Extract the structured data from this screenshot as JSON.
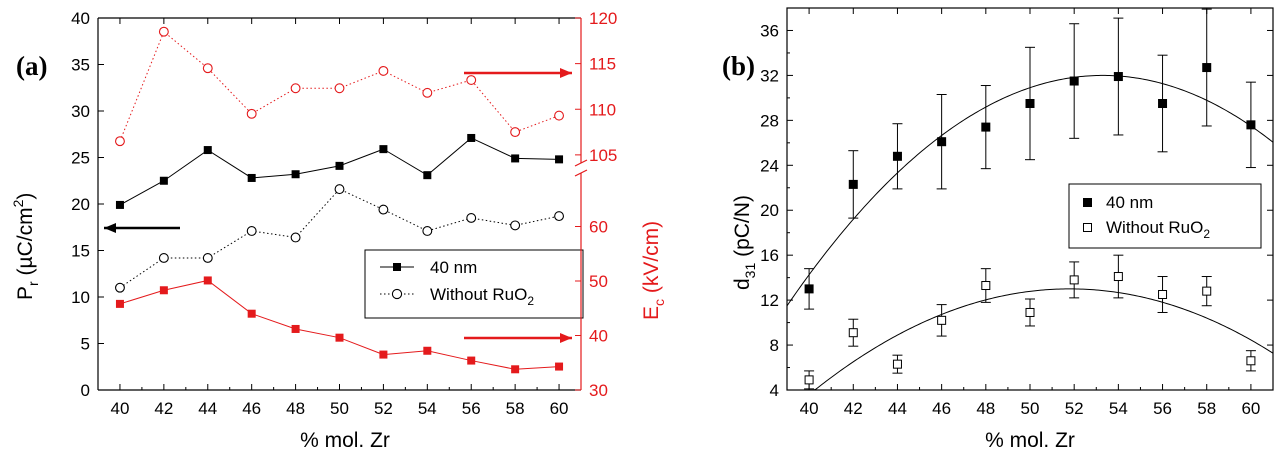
{
  "chart_data": [
    {
      "type": "line",
      "panel_label": "(a)",
      "xlabel": "% mol. Zr",
      "ylabel_left": {
        "main": "P",
        "sub": "r",
        "rest": " (µC/cm",
        "sup": "2",
        "end": ")"
      },
      "ylabel_right": {
        "main": "E",
        "sub": "c",
        "rest": " (kV/cm)"
      },
      "x": [
        40,
        42,
        44,
        46,
        48,
        50,
        52,
        54,
        56,
        58,
        60
      ],
      "xlim": [
        39,
        61
      ],
      "xticks": [
        40,
        42,
        44,
        46,
        48,
        50,
        52,
        54,
        56,
        58,
        60
      ],
      "ylim_left": [
        0,
        40
      ],
      "yticks_left": [
        0,
        5,
        10,
        15,
        20,
        25,
        30,
        35,
        40
      ],
      "right_axis_broken": true,
      "right_axis_lower": {
        "range": [
          30,
          70
        ],
        "ticks": [
          30,
          40,
          50,
          60
        ]
      },
      "right_axis_upper": {
        "range": [
          104,
          120
        ],
        "ticks": [
          105,
          110,
          115,
          120
        ]
      },
      "series": [
        {
          "name": "40 nm",
          "axis": "left",
          "color": "#000000",
          "marker": "filled-square",
          "line": "solid",
          "values": [
            19.9,
            22.5,
            25.8,
            22.8,
            23.2,
            24.1,
            25.9,
            23.1,
            27.1,
            24.9,
            24.8
          ]
        },
        {
          "name": "Without RuO",
          "name_sub": "2",
          "axis": "left",
          "color": "#000000",
          "marker": "open-circle",
          "line": "dotted",
          "values": [
            11.0,
            14.2,
            14.2,
            17.1,
            16.4,
            21.6,
            19.4,
            17.1,
            18.5,
            17.7,
            18.7
          ]
        },
        {
          "axis": "right",
          "color": "#e41a1c",
          "marker": "filled-square",
          "line": "solid",
          "values": [
            45.8,
            48.3,
            50.1,
            44.0,
            41.2,
            39.6,
            36.5,
            37.2,
            35.4,
            33.8,
            34.3
          ]
        },
        {
          "axis": "right",
          "color": "#e41a1c",
          "marker": "open-circle",
          "line": "dotted",
          "values": [
            106.5,
            118.5,
            114.5,
            109.5,
            112.3,
            112.3,
            114.2,
            111.8,
            113.2,
            107.5,
            109.3
          ]
        }
      ],
      "legend_position": "center-right",
      "arrows": [
        {
          "points_to": "left",
          "color": "#000000"
        },
        {
          "points_to": "right",
          "color": "#e41a1c"
        },
        {
          "points_to": "right",
          "color": "#e41a1c"
        }
      ]
    },
    {
      "type": "scatter",
      "panel_label": "(b)",
      "xlabel": "% mol. Zr",
      "ylabel": {
        "main": "d",
        "sub": "31",
        "rest": " (pC/N)"
      },
      "x": [
        40,
        42,
        44,
        46,
        48,
        50,
        52,
        54,
        56,
        58,
        60
      ],
      "xlim": [
        39,
        61
      ],
      "xticks": [
        40,
        42,
        44,
        46,
        48,
        50,
        52,
        54,
        56,
        58,
        60
      ],
      "ylim": [
        4,
        38
      ],
      "yticks": [
        4,
        8,
        12,
        16,
        20,
        24,
        28,
        32,
        36
      ],
      "series": [
        {
          "name": "40 nm",
          "marker": "filled-square",
          "color": "#000000",
          "values": [
            13.0,
            22.3,
            24.8,
            26.1,
            27.4,
            29.5,
            31.5,
            31.9,
            29.5,
            32.7,
            27.6
          ],
          "errors": [
            1.8,
            3.0,
            2.9,
            4.2,
            3.7,
            5.0,
            5.1,
            5.2,
            4.3,
            5.2,
            3.8
          ]
        },
        {
          "name": "Without RuO",
          "name_sub": "2",
          "marker": "open-square",
          "color": "#000000",
          "values": [
            4.9,
            9.1,
            6.3,
            10.2,
            13.3,
            10.9,
            13.8,
            14.1,
            12.5,
            12.8,
            6.6
          ],
          "errors": [
            0.8,
            1.2,
            0.8,
            1.4,
            1.5,
            1.2,
            1.6,
            1.9,
            1.6,
            1.3,
            0.9
          ]
        }
      ],
      "fits": [
        {
          "of": "40 nm",
          "kind": "parabola",
          "vertex_x": 53.3,
          "vertex_y": 32.0,
          "curvature": -0.1003
        },
        {
          "of": "Without RuO2",
          "kind": "parabola",
          "vertex_x": 51.8,
          "vertex_y": 13.0,
          "curvature": -0.0676
        }
      ],
      "legend_position": "center-right"
    }
  ]
}
